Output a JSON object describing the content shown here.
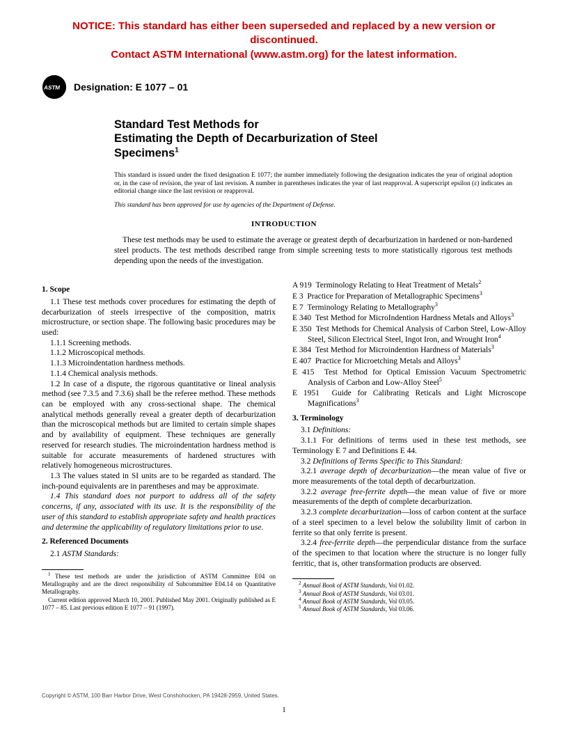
{
  "notice": {
    "line1": "NOTICE: This standard has either been superseded and replaced by a new version or discontinued.",
    "line2": "Contact ASTM International (www.astm.org) for the latest information.",
    "color": "#cc0000",
    "font_family": "Arial",
    "font_weight": "bold",
    "font_size_pt": 11
  },
  "header": {
    "designation_label": "Designation: E 1077 – 01",
    "logo_bg": "#000000",
    "logo_text": "ASTM"
  },
  "title": {
    "line1": "Standard Test Methods for",
    "line2": "Estimating the Depth of Decarburization of Steel",
    "line3": "Specimens",
    "superscript": "1"
  },
  "issuance": "This standard is issued under the fixed designation E 1077; the number immediately following the designation indicates the year of original adoption or, in the case of revision, the year of last revision. A number in parentheses indicates the year of last reapproval. A superscript epsilon (ε) indicates an editorial change since the last revision or reapproval.",
  "dod_note": "This standard has been approved for use by agencies of the Department of Defense.",
  "intro": {
    "heading": "INTRODUCTION",
    "body": "These test methods may be used to estimate the average or greatest depth of decarburization in hardened or non-hardened steel products. The test methods described range from simple screening tests to more statistically rigorous test methods depending upon the needs of the investigation."
  },
  "sections": {
    "scope": {
      "heading": "1. Scope",
      "p1_1": "1.1 These test methods cover procedures for estimating the depth of decarburization of steels irrespective of the composition, matrix microstructure, or section shape. The following basic procedures may be used:",
      "p1_1_1": "1.1.1 Screening methods.",
      "p1_1_2": "1.1.2 Microscopical methods.",
      "p1_1_3": "1.1.3 Microindentation hardness methods.",
      "p1_1_4": "1.1.4 Chemical analysis methods.",
      "p1_2": "1.2 In case of a dispute, the rigorous quantitative or lineal analysis method (see 7.3.5 and 7.3.6) shall be the referee method. These methods can be employed with any cross-sectional shape. The chemical analytical methods generally reveal a greater depth of decarburization than the microscopical methods but are limited to certain simple shapes and by availability of equipment. These techniques are generally reserved for research studies. The microindentation hardness method is suitable for accurate measurements of hardened structures with relatively homogeneous microstructures.",
      "p1_3": "1.3 The values stated in SI units are to be regarded as standard. The inch-pound equivalents are in parentheses and may be approximate.",
      "p1_4": "1.4 This standard does not purport to address all of the safety concerns, if any, associated with its use. It is the responsibility of the user of this standard to establish appropriate safety and health practices and determine the applicability of regulatory limitations prior to use."
    },
    "refs": {
      "heading": "2. Referenced Documents",
      "p2_1": "2.1 ",
      "p2_1_label": "ASTM Standards:",
      "items": [
        {
          "code": "A 919",
          "text": "Terminology Relating to Heat Treatment of Metals",
          "sup": "2"
        },
        {
          "code": "E 3",
          "text": "Practice for Preparation of Metallographic Specimens",
          "sup": "3"
        },
        {
          "code": "E 7",
          "text": "Terminology Relating to Metallography",
          "sup": "3"
        },
        {
          "code": "E 340",
          "text": "Test Method for MicroIndention Hardness Metals and Alloys",
          "sup": "3"
        },
        {
          "code": "E 350",
          "text": "Test Methods for Chemical Analysis of Carbon Steel, Low-Alloy Steel, Silicon Electrical Steel, Ingot Iron, and Wrought Iron",
          "sup": "4"
        },
        {
          "code": "E 384",
          "text": "Test Method for Microindention Hardness of Materials",
          "sup": "3"
        },
        {
          "code": "E 407",
          "text": "Practice for Microetching Metals and Alloys",
          "sup": "3"
        },
        {
          "code": "E 415",
          "text": "Test Method for Optical Emission Vacuum Spectrometric Analysis of Carbon and Low-Alloy Steel",
          "sup": "5"
        },
        {
          "code": "E 1951",
          "text": "Guide for Calibrating Reticals and Light Microscope Magnifications",
          "sup": "3"
        }
      ]
    },
    "term": {
      "heading": "3. Terminology",
      "p3_1": "3.1 ",
      "p3_1_label": "Definitions:",
      "p3_1_1": "3.1.1 For definitions of terms used in these test methods, see Terminology E 7 and Definitions E 44.",
      "p3_2": "3.2 ",
      "p3_2_label": "Definitions of Terms Specific to This Standard:",
      "defs": [
        {
          "num": "3.2.1",
          "name": "average depth of decarburization",
          "text": "—the mean value of five or more measurements of the total depth of decarburization."
        },
        {
          "num": "3.2.2",
          "name": "average free-ferrite depth",
          "text": "—the mean value of five or more measurements of the depth of complete decarburization."
        },
        {
          "num": "3.2.3",
          "name": "complete decarburization",
          "text": "—loss of carbon content at the surface of a steel specimen to a level below the solubility limit of carbon in ferrite so that only ferrite is present."
        },
        {
          "num": "3.2.4",
          "name": "free-ferrite depth",
          "text": "—the perpendicular distance from the surface of the specimen to that location where the structure is no longer fully ferritic, that is, other transformation products are observed."
        }
      ]
    }
  },
  "footnotes": {
    "left": [
      "These test methods are under the jurisdiction of ASTM Committee E04 on Metallography and are the direct responsibility of Subcommittee E04.14 on Quantitative Metallography.",
      "Current edition approved March 10, 2001. Published May 2001. Originally published as E 1077 – 85. Last previous edition E 1077 – 91 (1997)."
    ],
    "left_sup": "1",
    "right": [
      {
        "sup": "2",
        "text": "Annual Book of ASTM Standards",
        "vol": ", Vol 01.02."
      },
      {
        "sup": "3",
        "text": "Annual Book of ASTM Standards",
        "vol": ", Vol 03.01."
      },
      {
        "sup": "4",
        "text": "Annual Book of ASTM Standards",
        "vol": ", Vol 03.05."
      },
      {
        "sup": "5",
        "text": "Annual Book of ASTM Standards",
        "vol": ", Vol 03.06."
      }
    ]
  },
  "copyright": "Copyright © ASTM, 100 Barr Harbor Drive, West Conshohocken, PA 19428-2959, United States.",
  "page_number": "1",
  "colors": {
    "text": "#000000",
    "background": "#ffffff",
    "notice": "#cc0000"
  },
  "typography": {
    "body_font": "Times New Roman",
    "heading_font": "Arial",
    "body_size_pt": 9,
    "title_size_pt": 13
  }
}
